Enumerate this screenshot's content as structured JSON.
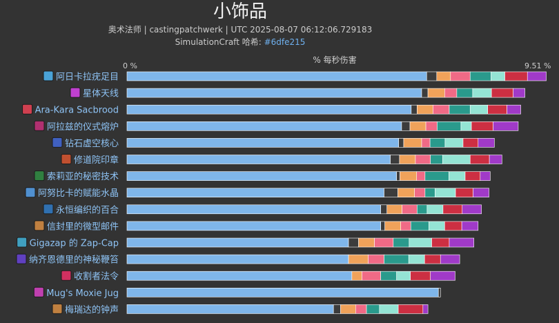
{
  "header": {
    "title": "小饰品",
    "subtitle_line1": "奥术法师 | castingpatchwerk | UTC 2025-08-07 06:12:06.729183",
    "subtitle_prefix": "SimulationCraft 哈希: ",
    "subtitle_hash": "#6dfe215"
  },
  "chart_data": {
    "type": "bar",
    "orientation": "horizontal",
    "stacked": true,
    "xlabel": "% 每秒伤害",
    "xlim": [
      0,
      9.51
    ],
    "x_tick_labels": [
      "0 %",
      "9.51 %"
    ],
    "colors": {
      "base": "#7fb6ea",
      "dark": "#3c3c3c",
      "orange": "#f0a25a",
      "pink": "#f06a86",
      "teal": "#2a9a8c",
      "mint": "#94e4d4",
      "red": "#cc2f42",
      "purple": "#a03ac8"
    },
    "segment_order": [
      "base",
      "dark",
      "orange",
      "pink",
      "teal",
      "mint",
      "red",
      "purple"
    ],
    "categories": [
      {
        "label": "阿日卡拉疣足目",
        "icon": "spider-icon",
        "icon_color": "#4aa3d8",
        "segments": [
          7.17,
          0.24,
          0.33,
          0.47,
          0.5,
          0.33,
          0.54,
          0.45
        ]
      },
      {
        "label": "星体天线",
        "icon": "antenna-icon",
        "icon_color": "#c040d0",
        "segments": [
          7.05,
          0.15,
          0.4,
          0.29,
          0.38,
          0.45,
          0.52,
          0.28
        ]
      },
      {
        "label": "Ara-Kara Sacbrood",
        "icon": "sacbrood-icon",
        "icon_color": "#d04050",
        "segments": [
          6.8,
          0.14,
          0.38,
          0.39,
          0.5,
          0.42,
          0.46,
          0.33
        ]
      },
      {
        "label": "阿拉兹的仪式熔炉",
        "icon": "crucible-icon",
        "icon_color": "#b03070",
        "segments": [
          6.57,
          0.2,
          0.38,
          0.27,
          0.57,
          0.25,
          0.52,
          0.6
        ]
      },
      {
        "label": "钻石虚空核心",
        "icon": "void-core-icon",
        "icon_color": "#4060c0",
        "segments": [
          6.5,
          0.12,
          0.43,
          0.2,
          0.36,
          0.43,
          0.36,
          0.39
        ]
      },
      {
        "label": "修道院印章",
        "icon": "seal-icon",
        "icon_color": "#c05030",
        "segments": [
          6.3,
          0.22,
          0.38,
          0.36,
          0.29,
          0.66,
          0.46,
          0.3
        ]
      },
      {
        "label": "索莉亚的秘密技术",
        "icon": "tech-icon",
        "icon_color": "#308040",
        "segments": [
          6.45,
          0.08,
          0.4,
          0.2,
          0.57,
          0.39,
          0.36,
          0.24
        ]
      },
      {
        "label": "阿努比卡的赋能水晶",
        "icon": "crystal-icon",
        "icon_color": "#5090d0",
        "segments": [
          6.15,
          0.33,
          0.4,
          0.25,
          0.24,
          0.49,
          0.42,
          0.38
        ]
      },
      {
        "label": "永恒编织的百合",
        "icon": "lily-icon",
        "icon_color": "#3070b0",
        "segments": [
          6.07,
          0.15,
          0.36,
          0.36,
          0.24,
          0.38,
          0.46,
          0.46
        ]
      },
      {
        "label": "信封里的微型邮件",
        "icon": "envelope-icon",
        "icon_color": "#c08040",
        "segments": [
          6.07,
          0.1,
          0.38,
          0.24,
          0.43,
          0.38,
          0.41,
          0.39
        ]
      },
      {
        "label": "Gigazap 的 Zap-Cap",
        "icon": "zap-cap-icon",
        "icon_color": "#40a0c0",
        "segments": [
          5.3,
          0.24,
          0.38,
          0.45,
          0.38,
          0.54,
          0.42,
          0.59
        ]
      },
      {
        "label": "纳齐恩德里的神秘鞭笞",
        "icon": "scourge-icon",
        "icon_color": "#6040c0",
        "segments": [
          5.3,
          0,
          0.47,
          0.38,
          0.59,
          0.38,
          0.38,
          0.46
        ]
      },
      {
        "label": "收割者法令",
        "icon": "edict-icon",
        "icon_color": "#d03060",
        "segments": [
          5.38,
          0,
          0.24,
          0.45,
          0.38,
          0.33,
          0.48,
          0.59
        ]
      },
      {
        "label": "Mug's Moxie Jug",
        "icon": "jug-icon",
        "icon_color": "#c040b0",
        "segments": [
          7.45,
          0.05,
          0,
          0,
          0,
          0,
          0,
          0
        ]
      },
      {
        "label": "梅瑞达的钟声",
        "icon": "bell-icon",
        "icon_color": "#c08040",
        "segments": [
          4.94,
          0.17,
          0.36,
          0.26,
          0.31,
          0.45,
          0.59,
          0.12
        ]
      }
    ]
  }
}
